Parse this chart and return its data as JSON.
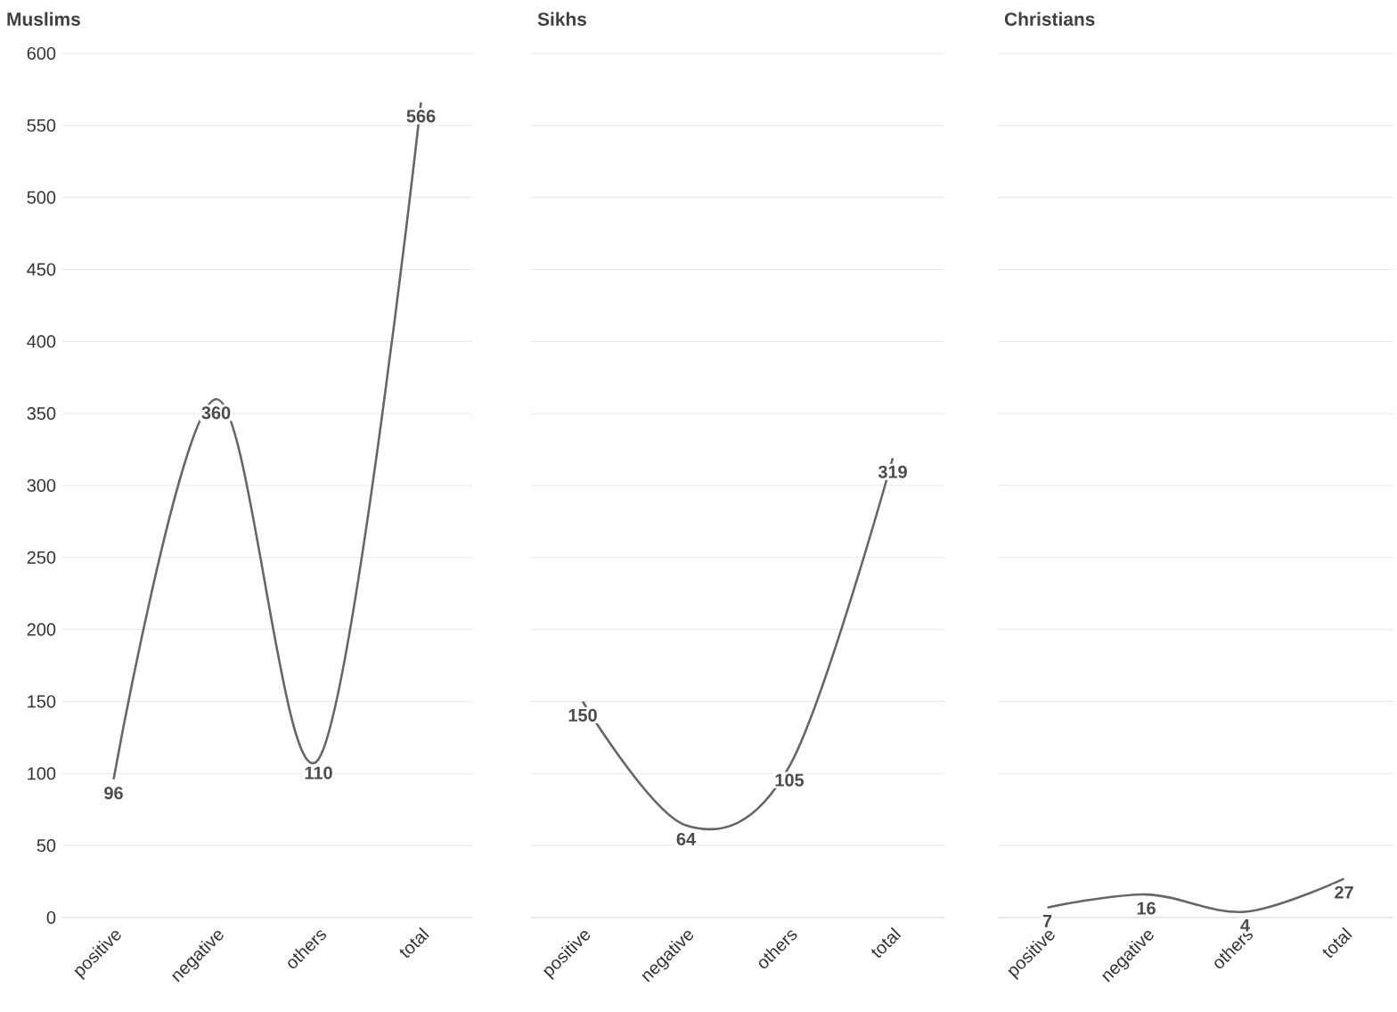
{
  "chart_data": [
    {
      "type": "line",
      "title": "Muslims",
      "categories": [
        "positive",
        "negative",
        "others",
        "total"
      ],
      "values": [
        96,
        360,
        110,
        566
      ],
      "color": "#666666",
      "ylim": [
        0,
        600
      ],
      "yticks": [
        0,
        50,
        100,
        150,
        200,
        250,
        300,
        350,
        400,
        450,
        500,
        550,
        600
      ],
      "grid": "y",
      "data_labels": true
    },
    {
      "type": "line",
      "title": "Sikhs",
      "categories": [
        "positive",
        "negative",
        "others",
        "total"
      ],
      "values": [
        150,
        64,
        105,
        319
      ],
      "color": "#666666",
      "ylim": [
        0,
        600
      ],
      "yticks": [
        0,
        50,
        100,
        150,
        200,
        250,
        300,
        350,
        400,
        450,
        500,
        550,
        600
      ],
      "grid": "y",
      "data_labels": true,
      "tick_labels": "x"
    },
    {
      "type": "line",
      "title": "Christians",
      "categories": [
        "positive",
        "negative",
        "others",
        "total"
      ],
      "values": [
        7,
        16,
        4,
        27
      ],
      "color": "#666666",
      "ylim": [
        0,
        600
      ],
      "yticks": [
        0,
        50,
        100,
        150,
        200,
        250,
        300,
        350,
        400,
        450,
        500,
        550,
        600
      ],
      "grid": "y",
      "data_labels": true,
      "tick_labels": "x"
    }
  ]
}
